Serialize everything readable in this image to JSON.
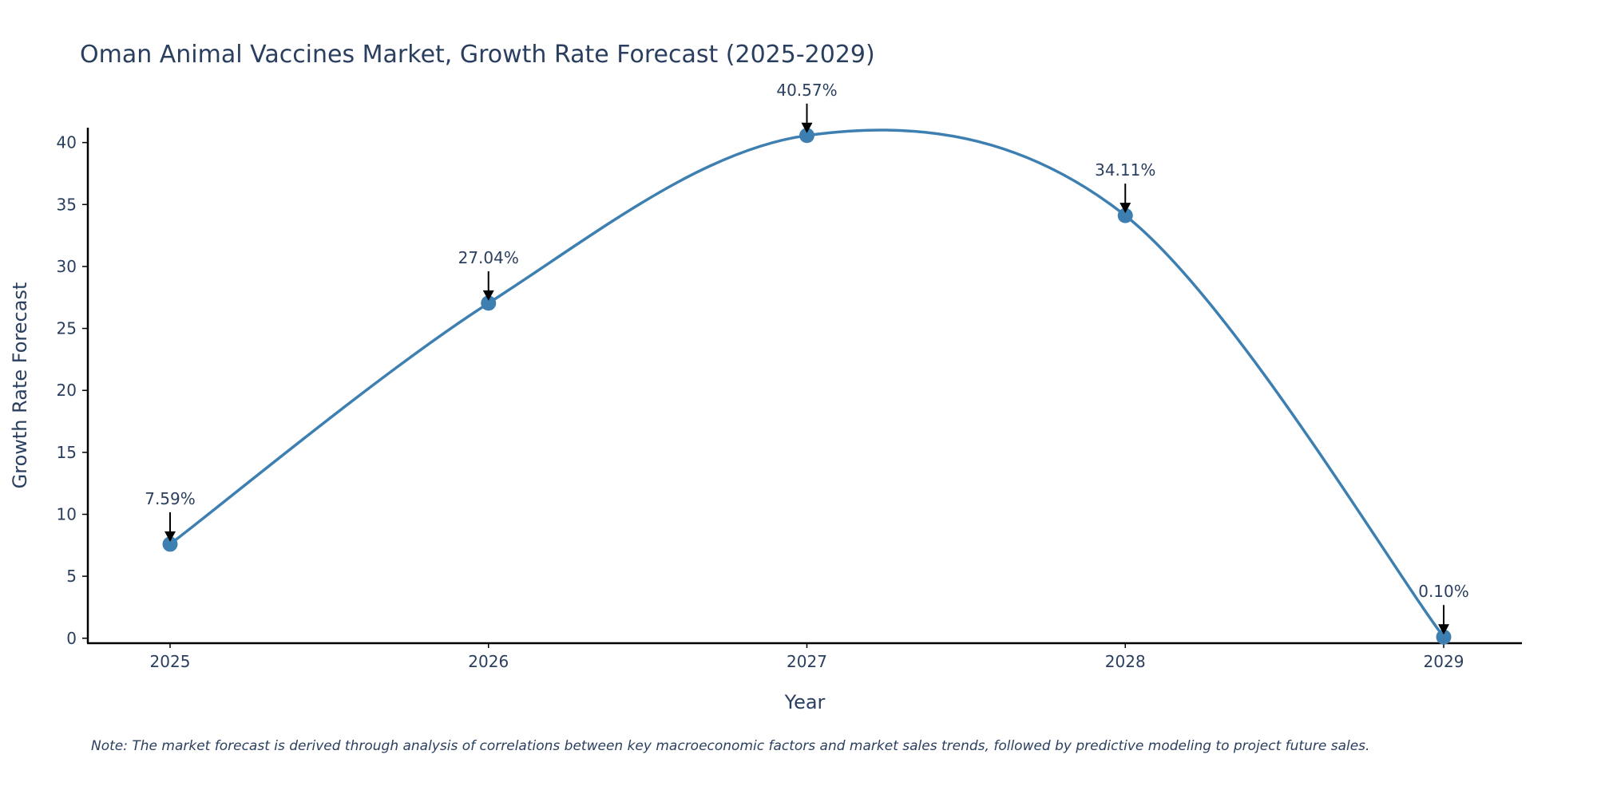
{
  "chart_data": {
    "type": "line",
    "title": "Oman Animal Vaccines Market, Growth Rate Forecast (2025-2029)",
    "xlabel": "Year",
    "ylabel": "Growth Rate Forecast",
    "categories": [
      "2025",
      "2026",
      "2027",
      "2028",
      "2029"
    ],
    "values": [
      7.59,
      27.04,
      40.57,
      34.11,
      0.1
    ],
    "data_labels": [
      "7.59%",
      "27.04%",
      "40.57%",
      "34.11%",
      "0.10%"
    ],
    "yticks": [
      0,
      5,
      10,
      15,
      20,
      25,
      30,
      35,
      40
    ],
    "ylim": [
      -0.4,
      41.2
    ],
    "grid": false,
    "line_color": "#3d7fb0",
    "marker_color": "#3d7fb0",
    "note": "Note: The market forecast is derived through analysis of correlations between key macroeconomic factors and market sales trends, followed by predictive modeling to project future sales."
  }
}
